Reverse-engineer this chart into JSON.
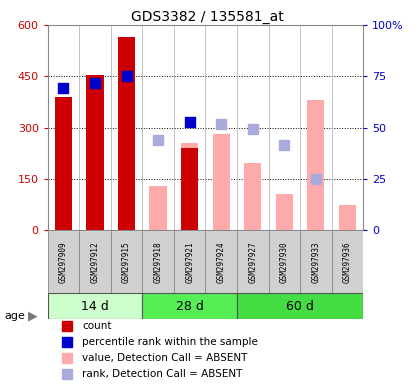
{
  "title": "GDS3382 / 135581_at",
  "samples": [
    "GSM297909",
    "GSM297912",
    "GSM297915",
    "GSM297918",
    "GSM297921",
    "GSM297924",
    "GSM297927",
    "GSM297930",
    "GSM297933",
    "GSM297936"
  ],
  "age_groups": [
    {
      "label": "14 d",
      "indices": [
        0,
        1,
        2
      ],
      "color": "#ccffcc"
    },
    {
      "label": "28 d",
      "indices": [
        3,
        4,
        5
      ],
      "color": "#55ee55"
    },
    {
      "label": "60 d",
      "indices": [
        6,
        7,
        8,
        9
      ],
      "color": "#44dd44"
    }
  ],
  "count_values": [
    390,
    455,
    565,
    null,
    240,
    null,
    null,
    null,
    null,
    null
  ],
  "percentile_rank_left": [
    415,
    430,
    450,
    null,
    315,
    null,
    null,
    null,
    null,
    null
  ],
  "absent_value": [
    null,
    null,
    null,
    130,
    255,
    280,
    195,
    105,
    380,
    75
  ],
  "absent_rank_left": [
    null,
    null,
    null,
    265,
    null,
    310,
    295,
    250,
    150,
    null
  ],
  "ylim_left": [
    0,
    600
  ],
  "ylim_right": [
    0,
    100
  ],
  "yticks_left": [
    0,
    150,
    300,
    450,
    600
  ],
  "yticks_right": [
    0,
    25,
    50,
    75,
    100
  ],
  "ytick_labels_right": [
    "0",
    "25",
    "50",
    "75",
    "100%"
  ],
  "color_count": "#cc0000",
  "color_rank": "#0000cc",
  "color_absent_value": "#ffaaaa",
  "color_absent_rank": "#aaaadd",
  "bar_width": 0.55,
  "dot_size": 55
}
